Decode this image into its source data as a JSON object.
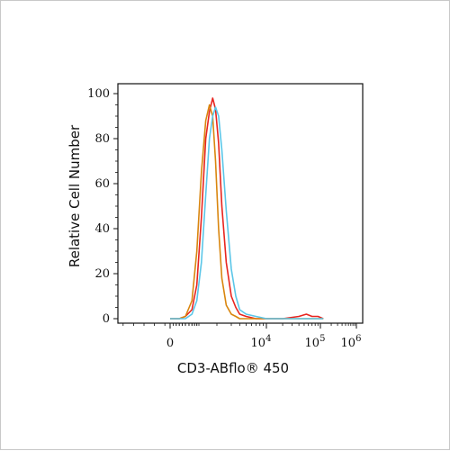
{
  "chart_data": {
    "type": "line",
    "title": "",
    "xlabel": "CD3-ABflo® 450",
    "ylabel": "Relative Cell Number",
    "x_scale": "biexponential",
    "xlim": [
      -100,
      1000000
    ],
    "ylim": [
      0,
      100
    ],
    "x_ticks": [
      {
        "value": 0,
        "base": "0",
        "exp": ""
      },
      {
        "value": 10000,
        "base": "10",
        "exp": "4"
      },
      {
        "value": 100000,
        "base": "10",
        "exp": "5"
      },
      {
        "value": 1000000,
        "base": "10",
        "exp": "6"
      }
    ],
    "y_ticks": [
      {
        "value": 0,
        "label": "0"
      },
      {
        "value": 20,
        "label": "20"
      },
      {
        "value": 40,
        "label": "40"
      },
      {
        "value": 60,
        "label": "60"
      },
      {
        "value": 80,
        "label": "80"
      },
      {
        "value": 100,
        "label": "100"
      }
    ],
    "grid": false,
    "legend": "none",
    "series": [
      {
        "color": "#e8251f",
        "x": [
          0,
          300,
          500,
          700,
          900,
          1100,
          1300,
          1500,
          1700,
          1900,
          2100,
          2300,
          2600,
          3000,
          3500,
          4000,
          5000,
          7000,
          10000,
          20000,
          40000,
          55000,
          70000,
          90000,
          120000
        ],
        "y": [
          0,
          0,
          1,
          4,
          15,
          45,
          80,
          92,
          98,
          93,
          78,
          50,
          25,
          10,
          5,
          2,
          1,
          0,
          0,
          0,
          1,
          2,
          1,
          1,
          0
        ]
      },
      {
        "color": "#d9860f",
        "x": [
          0,
          300,
          500,
          700,
          900,
          1100,
          1300,
          1500,
          1700,
          1900,
          2100,
          2300,
          2600,
          3000,
          3500,
          4000,
          5000,
          7000,
          10000,
          20000,
          50000,
          120000
        ],
        "y": [
          0,
          0,
          1,
          8,
          30,
          65,
          88,
          95,
          90,
          70,
          40,
          18,
          6,
          2,
          1,
          0,
          0,
          0,
          0,
          0,
          0,
          0
        ]
      },
      {
        "color": "#5bc6e8",
        "x": [
          0,
          300,
          500,
          700,
          900,
          1100,
          1300,
          1500,
          1700,
          1900,
          2100,
          2300,
          2600,
          3000,
          3500,
          4000,
          5000,
          7000,
          10000,
          20000,
          50000,
          120000
        ],
        "y": [
          0,
          0,
          0,
          2,
          8,
          25,
          55,
          80,
          90,
          94,
          90,
          75,
          48,
          22,
          10,
          4,
          2,
          1,
          0,
          0,
          0,
          0
        ]
      }
    ]
  }
}
